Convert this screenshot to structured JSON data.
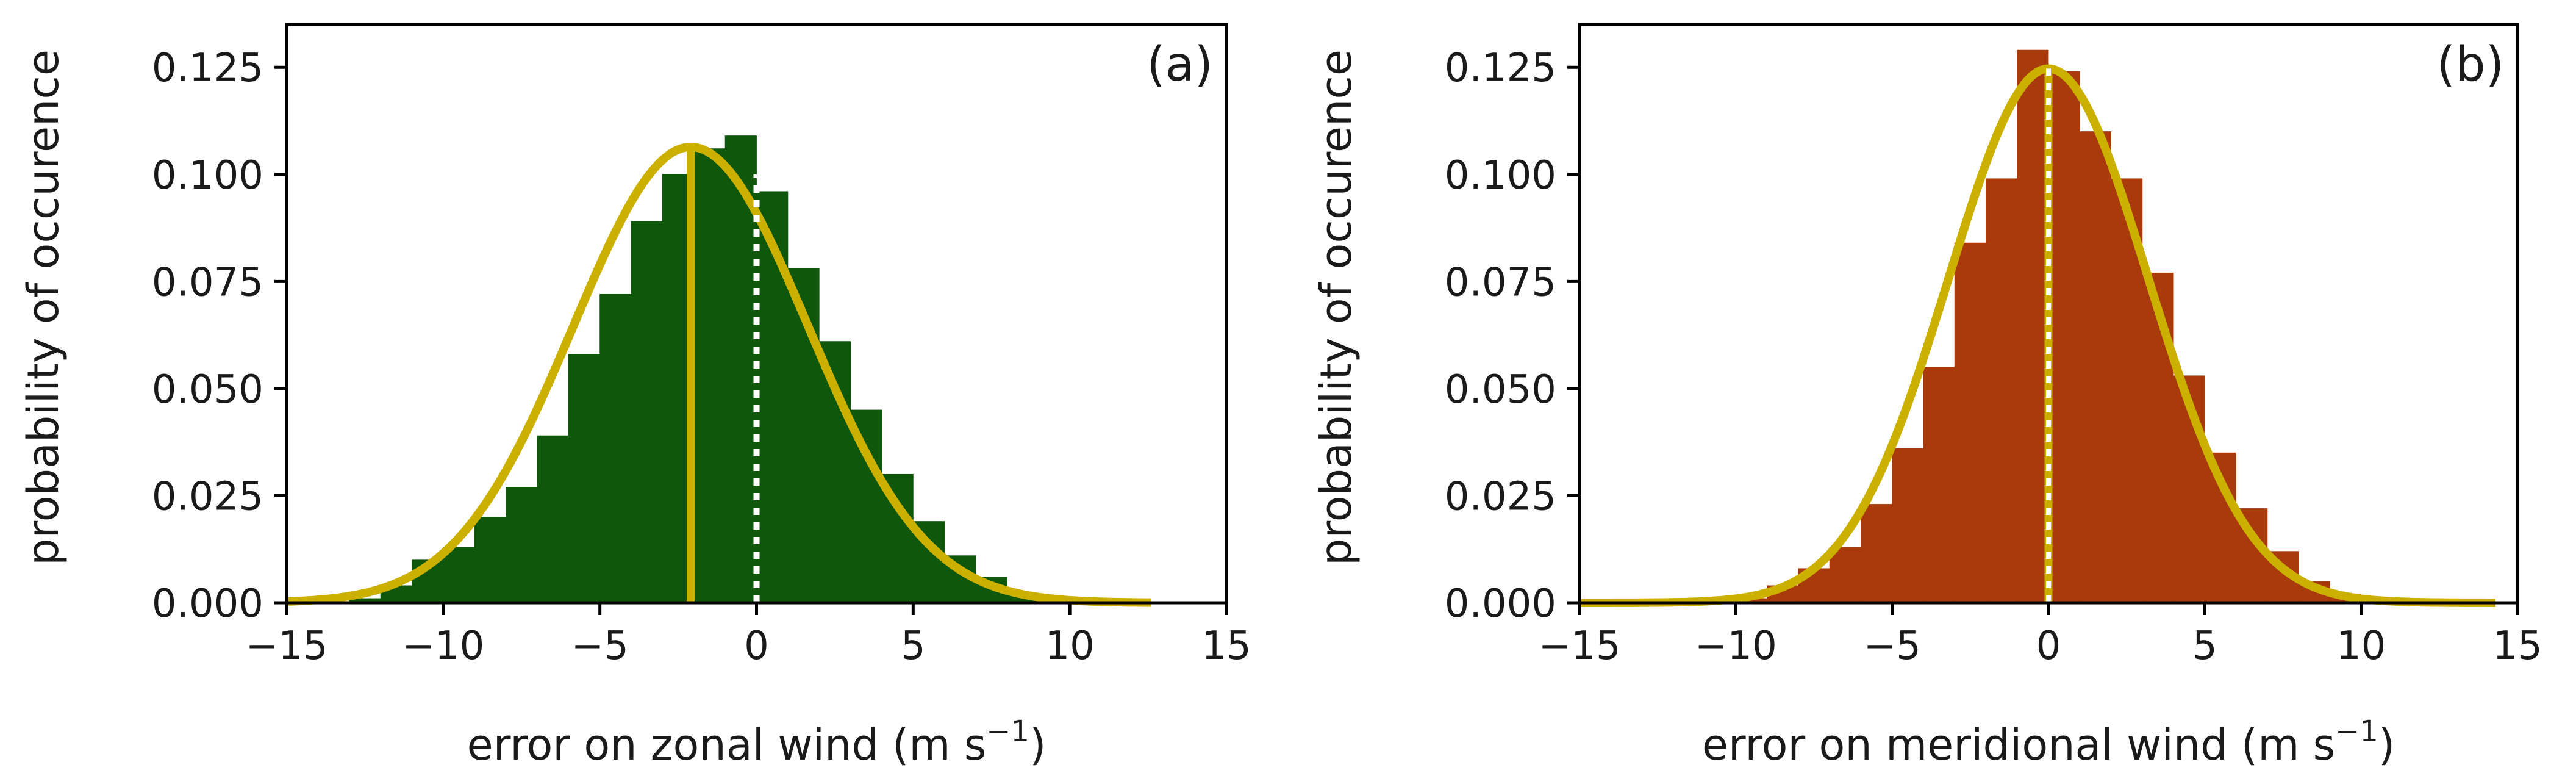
{
  "chart_data": [
    {
      "type": "bar",
      "panel_label": "(a)",
      "xlabel": "error on zonal wind",
      "xlabel_unit_base": "(m s",
      "xlabel_unit_exp": "−1",
      "xlabel_unit_close": ")",
      "ylabel": "probability of occurence",
      "xlim": [
        -15,
        15
      ],
      "ylim": [
        0,
        0.135
      ],
      "xticks": [
        -15,
        -10,
        -5,
        0,
        5,
        10,
        15
      ],
      "xtick_labels": [
        "−15",
        "−10",
        "−5",
        "0",
        "5",
        "10",
        "15"
      ],
      "yticks": [
        0.0,
        0.025,
        0.05,
        0.075,
        0.1,
        0.125
      ],
      "ytick_labels": [
        "0.000",
        "0.025",
        "0.050",
        "0.075",
        "0.100",
        "0.125"
      ],
      "bar_color": "#0f570a",
      "curve_color": "#ccb000",
      "bin_width": 1,
      "bin_starts": [
        -13,
        -12,
        -11,
        -10,
        -9,
        -8,
        -7,
        -6,
        -5,
        -4,
        -3,
        -2,
        -1,
        0,
        1,
        2,
        3,
        4,
        5,
        6,
        7,
        8,
        9
      ],
      "values": [
        0.001,
        0.004,
        0.01,
        0.013,
        0.02,
        0.027,
        0.039,
        0.058,
        0.072,
        0.089,
        0.1,
        0.106,
        0.109,
        0.096,
        0.078,
        0.061,
        0.045,
        0.03,
        0.019,
        0.011,
        0.006,
        0.002,
        0.001
      ],
      "gaussian": {
        "mean": -2.1,
        "std": 3.75,
        "x_range": [
          -15,
          12.6
        ]
      },
      "mean_line_x": -2.1,
      "zero_line_x": 0
    },
    {
      "type": "bar",
      "panel_label": "(b)",
      "xlabel": "error on meridional wind",
      "xlabel_unit_base": "(m s",
      "xlabel_unit_exp": "−1",
      "xlabel_unit_close": ")",
      "ylabel": "probability of occurence",
      "xlim": [
        -15,
        15
      ],
      "ylim": [
        0,
        0.135
      ],
      "xticks": [
        -15,
        -10,
        -5,
        0,
        5,
        10,
        15
      ],
      "xtick_labels": [
        "−15",
        "−10",
        "−5",
        "0",
        "5",
        "10",
        "15"
      ],
      "yticks": [
        0.0,
        0.025,
        0.05,
        0.075,
        0.1,
        0.125
      ],
      "ytick_labels": [
        "0.000",
        "0.025",
        "0.050",
        "0.075",
        "0.100",
        "0.125"
      ],
      "bar_color": "#a83a0b",
      "curve_color": "#ccb000",
      "bin_width": 1,
      "bin_starts": [
        -10,
        -9,
        -8,
        -7,
        -6,
        -5,
        -4,
        -3,
        -2,
        -1,
        0,
        1,
        2,
        3,
        4,
        5,
        6,
        7,
        8,
        9
      ],
      "values": [
        0.001,
        0.004,
        0.008,
        0.013,
        0.023,
        0.036,
        0.055,
        0.084,
        0.099,
        0.129,
        0.124,
        0.11,
        0.099,
        0.077,
        0.053,
        0.035,
        0.022,
        0.012,
        0.005,
        0.002
      ],
      "gaussian": {
        "mean": 0.0,
        "std": 3.2,
        "x_range": [
          -15,
          14.3
        ]
      },
      "mean_line_x": 0.0,
      "zero_line_x": 0
    }
  ]
}
